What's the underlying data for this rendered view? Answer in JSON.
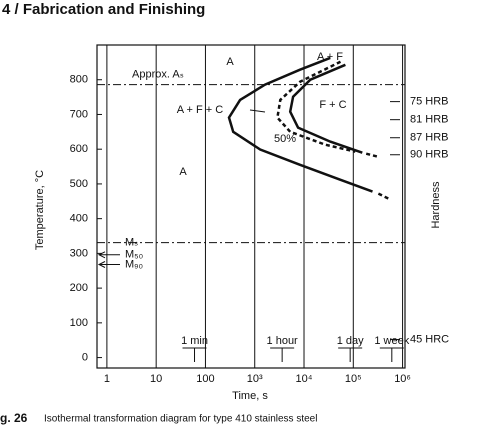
{
  "header": "4 / Fabrication and Finishing",
  "caption": {
    "number": "g. 26",
    "text": "Isothermal transformation diagram for type 410 stainless steel"
  },
  "chart_data": {
    "type": "line",
    "x_label": "Time, s",
    "y_label": "Temperature, °C",
    "y2_label": "Hardness",
    "log_x": true,
    "xlim": [
      0.63,
      1120000
    ],
    "xticks": [
      1,
      10,
      100,
      {
        "value": 1000,
        "label": "10³"
      },
      {
        "value": 10000,
        "label": "10⁴"
      },
      {
        "value": 100000,
        "label": "10⁵"
      },
      {
        "value": 1000000,
        "label": "10⁶"
      }
    ],
    "ylim": [
      -30,
      900
    ],
    "yticks": [
      0,
      100,
      200,
      300,
      400,
      500,
      600,
      700,
      800
    ],
    "grid": true,
    "series": [
      {
        "color": "#111",
        "dash": false,
        "x": [
          34000,
          8300,
          1620,
          505,
          300,
          365,
          1290,
          8300,
          55000,
          245000
        ],
        "values": [
          863,
          829,
          786,
          742,
          691,
          650,
          599,
          555,
          512,
          478
        ]
      },
      {
        "color": "#111",
        "dash": true,
        "x": [
          323000,
          513000
        ],
        "values": [
          472,
          458
        ]
      },
      {
        "color": "#111",
        "dash": false,
        "x": [
          69000,
          13400,
          6000,
          5250,
          7600,
          34000,
          152000
        ],
        "values": [
          843,
          800,
          751,
          708,
          662,
          622,
          590
        ]
      },
      {
        "color": "#111",
        "dash": true,
        "x": [
          183000,
          323000
        ],
        "values": [
          587,
          578
        ]
      },
      {
        "color": "#111",
        "dash": true,
        "x": [
          55000,
          8300,
          3300,
          2880,
          5250,
          27000,
          110000
        ],
        "values": [
          852,
          794,
          742,
          691,
          650,
          613,
          593
        ]
      }
    ],
    "region_labels": [
      "A",
      "A + F",
      "A + F + C",
      "F + C",
      "50%",
      "A"
    ],
    "reference_lines": [
      {
        "label": "Approx. Aₛ",
        "value": 786
      },
      {
        "label": "Mₛ",
        "value": 331
      }
    ],
    "arrows": [
      {
        "label": "M₅₀",
        "value": 296
      },
      {
        "label": "M₉₀",
        "value": 268
      }
    ],
    "hardness": [
      {
        "label": "75 HRB",
        "value": 737
      },
      {
        "label": "81 HRB",
        "value": 685
      },
      {
        "label": "87 HRB",
        "value": 633
      },
      {
        "label": "90 HRB",
        "value": 584
      },
      {
        "label": "45 HRC",
        "value": 52
      }
    ],
    "time_markers": [
      {
        "label": "1 min",
        "value": 60
      },
      {
        "label": "1 hour",
        "value": 3600
      },
      {
        "label": "1 day",
        "value": 86400
      },
      {
        "label": "1 week",
        "value": 604800
      }
    ]
  }
}
